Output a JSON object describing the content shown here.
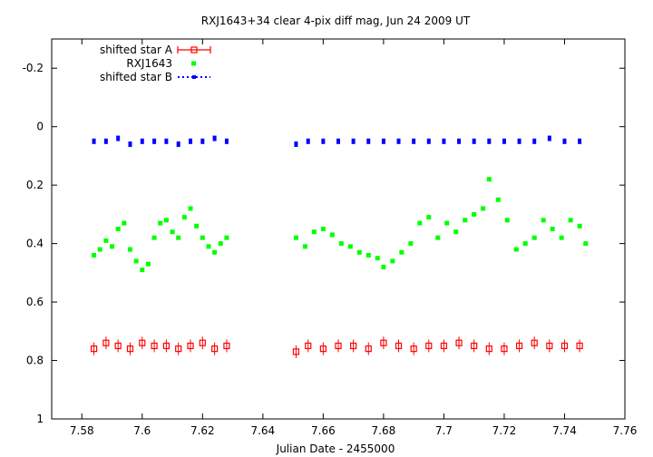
{
  "chart_data": {
    "type": "scatter",
    "title": "RXJ1643+34 clear 4-pix diff mag, Jun 24 2009 UT",
    "xlabel": "Julian Date - 2455000",
    "ylabel": "",
    "xlim": [
      7.57,
      7.76
    ],
    "ylim": [
      -0.3,
      1.0
    ],
    "y_inverted": true,
    "grid": false,
    "legend_position": "top-left",
    "x_ticks": [
      "7.58",
      "7.6",
      "7.62",
      "7.64",
      "7.66",
      "7.68",
      "7.7",
      "7.72",
      "7.74",
      "7.76"
    ],
    "y_ticks": [
      "-0.2",
      "0",
      "0.2",
      "0.4",
      "0.6",
      "0.8",
      "1"
    ],
    "series": [
      {
        "name": "shifted star A",
        "style": "points-with-errorbars",
        "color": "#ff0000",
        "x": [
          7.584,
          7.588,
          7.592,
          7.596,
          7.6,
          7.604,
          7.608,
          7.612,
          7.616,
          7.62,
          7.624,
          7.628,
          7.651,
          7.655,
          7.66,
          7.665,
          7.67,
          7.675,
          7.68,
          7.685,
          7.69,
          7.695,
          7.7,
          7.705,
          7.71,
          7.715,
          7.72,
          7.725,
          7.73,
          7.735,
          7.74,
          7.745
        ],
        "y": [
          0.76,
          0.74,
          0.75,
          0.76,
          0.74,
          0.75,
          0.75,
          0.76,
          0.75,
          0.74,
          0.76,
          0.75,
          0.77,
          0.75,
          0.76,
          0.75,
          0.75,
          0.76,
          0.74,
          0.75,
          0.76,
          0.75,
          0.75,
          0.74,
          0.75,
          0.76,
          0.76,
          0.75,
          0.74,
          0.75,
          0.75,
          0.75
        ]
      },
      {
        "name": "RXJ1643",
        "style": "points",
        "color": "#00ff00",
        "x": [
          7.584,
          7.586,
          7.588,
          7.59,
          7.592,
          7.594,
          7.596,
          7.598,
          7.6,
          7.602,
          7.604,
          7.606,
          7.608,
          7.61,
          7.612,
          7.614,
          7.616,
          7.618,
          7.62,
          7.622,
          7.624,
          7.626,
          7.628,
          7.651,
          7.654,
          7.657,
          7.66,
          7.663,
          7.666,
          7.669,
          7.672,
          7.675,
          7.678,
          7.68,
          7.683,
          7.686,
          7.689,
          7.692,
          7.695,
          7.698,
          7.701,
          7.704,
          7.707,
          7.71,
          7.713,
          7.715,
          7.718,
          7.721,
          7.724,
          7.727,
          7.73,
          7.733,
          7.736,
          7.739,
          7.742,
          7.745,
          7.747
        ],
        "y": [
          0.44,
          0.42,
          0.39,
          0.41,
          0.35,
          0.33,
          0.42,
          0.46,
          0.49,
          0.47,
          0.38,
          0.33,
          0.32,
          0.36,
          0.38,
          0.31,
          0.28,
          0.34,
          0.38,
          0.41,
          0.43,
          0.4,
          0.38,
          0.38,
          0.41,
          0.36,
          0.35,
          0.37,
          0.4,
          0.41,
          0.43,
          0.44,
          0.45,
          0.48,
          0.46,
          0.43,
          0.4,
          0.33,
          0.31,
          0.38,
          0.33,
          0.36,
          0.32,
          0.3,
          0.28,
          0.18,
          0.25,
          0.32,
          0.42,
          0.4,
          0.38,
          0.32,
          0.35,
          0.38,
          0.32,
          0.34,
          0.4
        ]
      },
      {
        "name": "shifted star B",
        "style": "points-dotted",
        "color": "#0000ff",
        "x": [
          7.584,
          7.588,
          7.592,
          7.596,
          7.6,
          7.604,
          7.608,
          7.612,
          7.616,
          7.62,
          7.624,
          7.628,
          7.651,
          7.655,
          7.66,
          7.665,
          7.67,
          7.675,
          7.68,
          7.685,
          7.69,
          7.695,
          7.7,
          7.705,
          7.71,
          7.715,
          7.72,
          7.725,
          7.73,
          7.735,
          7.74,
          7.745
        ],
        "y": [
          0.05,
          0.05,
          0.04,
          0.06,
          0.05,
          0.05,
          0.05,
          0.06,
          0.05,
          0.05,
          0.04,
          0.05,
          0.06,
          0.05,
          0.05,
          0.05,
          0.05,
          0.05,
          0.05,
          0.05,
          0.05,
          0.05,
          0.05,
          0.05,
          0.05,
          0.05,
          0.05,
          0.05,
          0.05,
          0.04,
          0.05,
          0.05
        ]
      }
    ]
  }
}
